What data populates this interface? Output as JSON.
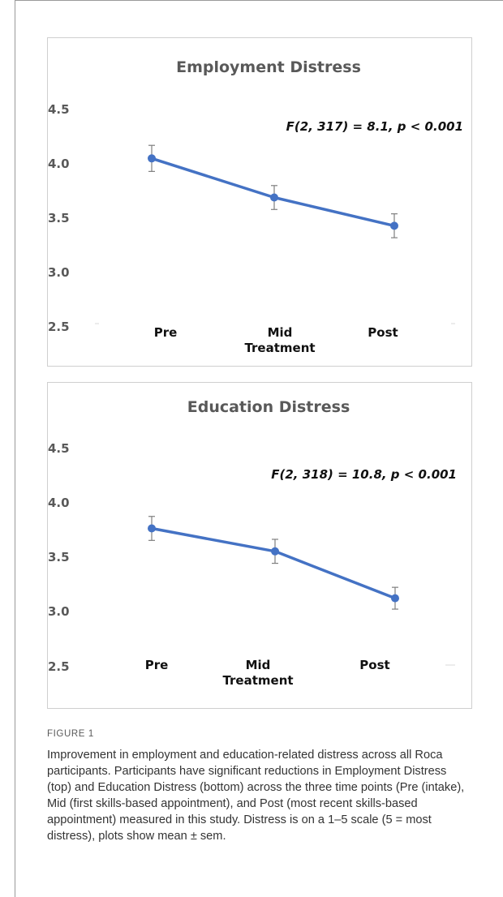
{
  "figure": {
    "label": "FIGURE 1",
    "caption": "Improvement in employment and education-related distress across all Roca participants. Participants have significant reductions in Employment Distress (top) and Education Distress (bottom) across the three time points (Pre (intake), Mid (first skills-based appointment), and Post (most recent skills-based appointment) measured in this study. Distress is on a 1–5 scale (5 = most distress), plots show mean ± sem."
  },
  "chart_data": [
    {
      "type": "line",
      "title": "Employment Distress",
      "annotation": "F(2, 317) = 8.1, p < 0.001",
      "categories": [
        "Pre",
        "Mid",
        "Post"
      ],
      "category_sublabels": [
        "",
        "Treatment",
        ""
      ],
      "yticks": [
        "4.5",
        "4.0",
        "3.5",
        "3.0",
        "2.5"
      ],
      "ylim": [
        2.5,
        4.5
      ],
      "values": [
        4.05,
        3.69,
        3.43
      ],
      "errors": [
        0.12,
        0.11,
        0.11
      ],
      "color": "#4472c4"
    },
    {
      "type": "line",
      "title": "Education Distress",
      "annotation": "F(2, 318) = 10.8, p < 0.001",
      "categories": [
        "Pre",
        "Mid",
        "Post"
      ],
      "category_sublabels": [
        "",
        "Treatment",
        ""
      ],
      "yticks": [
        "4.5",
        "4.0",
        "3.5",
        "3.0",
        "2.5"
      ],
      "ylim": [
        2.5,
        4.5
      ],
      "values": [
        3.76,
        3.55,
        3.12
      ],
      "errors": [
        0.11,
        0.11,
        0.1
      ],
      "color": "#4472c4"
    }
  ]
}
